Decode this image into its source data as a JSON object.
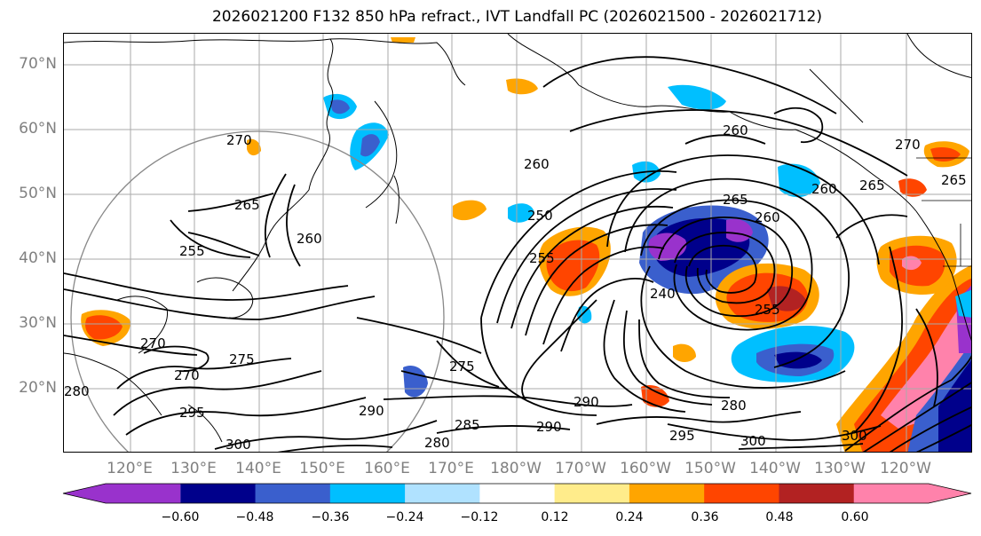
{
  "title": "2026021200 F132 850 hPa refract., IVT Landfall PC (2026021500 - 2026021712)",
  "lat_labels": [
    "70°N",
    "60°N",
    "50°N",
    "40°N",
    "30°N",
    "20°N"
  ],
  "lon_labels": [
    "120°E",
    "130°E",
    "140°E",
    "150°E",
    "160°E",
    "170°E",
    "180°W",
    "170°W",
    "160°W",
    "150°W",
    "140°W",
    "130°W",
    "120°W"
  ],
  "contour_labels": [
    "270",
    "265",
    "255",
    "260",
    "260",
    "250",
    "255",
    "260",
    "240",
    "265",
    "260",
    "255",
    "260",
    "265",
    "270",
    "265",
    "275",
    "270",
    "275",
    "270",
    "280",
    "285",
    "290",
    "290",
    "290",
    "280",
    "295",
    "300",
    "280",
    "295",
    "300",
    "300"
  ],
  "colorbar": {
    "ticks": [
      "−0.60",
      "−0.48",
      "−0.36",
      "−0.24",
      "−0.12",
      "0.12",
      "0.24",
      "0.36",
      "0.48",
      "0.60"
    ],
    "colors": [
      "#9932cc",
      "#00008b",
      "#3a5fcd",
      "#00bfff",
      "#b0e2ff",
      "#ffffff",
      "#ffec8b",
      "#ffa500",
      "#ff4500",
      "#b22222",
      "#ff82ab"
    ]
  }
}
